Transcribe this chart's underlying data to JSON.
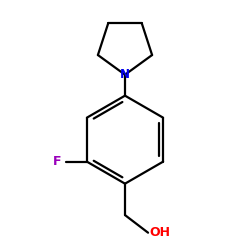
{
  "background_color": "#ffffff",
  "bond_color": "#000000",
  "N_color": "#0000ee",
  "F_color": "#9900bb",
  "O_color": "#ff0000",
  "bond_width": 1.6,
  "figsize": [
    2.5,
    2.5
  ],
  "dpi": 100,
  "xlim": [
    0.5,
    5.5
  ],
  "ylim": [
    0.3,
    6.2
  ]
}
